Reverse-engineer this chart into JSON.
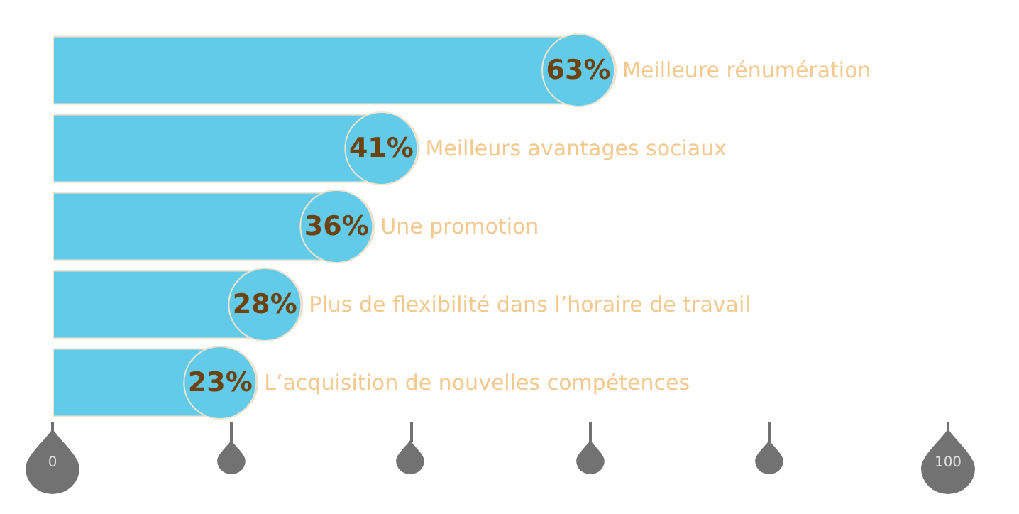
{
  "chart_data": {
    "type": "bar",
    "orientation": "horizontal",
    "categories": [
      "Meilleure rénumération",
      "Meilleurs avantages sociaux",
      "Une promotion",
      "Plus de flexibilité dans l’horaire de travail",
      "L’acquisition de nouvelles compétences"
    ],
    "values": [
      63,
      41,
      36,
      28,
      23
    ],
    "value_labels": [
      "63%",
      "41%",
      "36%",
      "28%",
      "23%"
    ],
    "color": "#62cbea",
    "xlim": [
      0,
      100
    ],
    "xticks": [
      0,
      {
        "value": 20,
        "label": null
      },
      {
        "value": 40,
        "label": null
      },
      {
        "value": 60,
        "label": null
      },
      {
        "value": 80,
        "label": null
      },
      100
    ],
    "grid": false
  }
}
